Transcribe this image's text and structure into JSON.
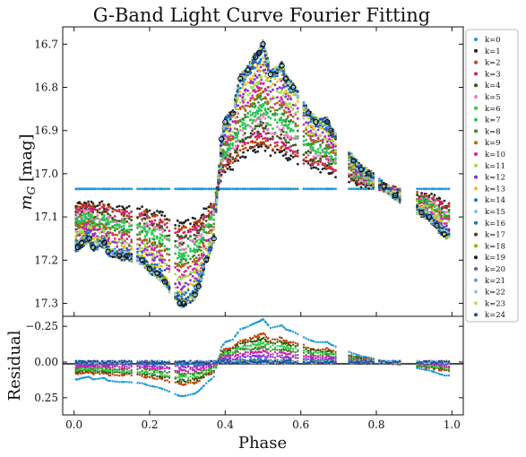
{
  "chart_data": {
    "type": "scatter",
    "title": "G-Band Light Curve Fourier Fitting",
    "xlabel": "Phase",
    "ylabel": "m_G [mag]",
    "ylabel_main": "m",
    "ylabel_sub": "G",
    "ylabel_unit": "[mag]",
    "residual_ylabel": "Residual",
    "xlim": [
      -0.03,
      1.03
    ],
    "ylim": [
      17.33,
      16.66
    ],
    "ylim_inverted": true,
    "residual_ylim": [
      0.37,
      -0.32
    ],
    "x_ticks": [
      "0.0",
      "0.2",
      "0.4",
      "0.6",
      "0.8",
      "1.0"
    ],
    "y_ticks": [
      "16.7",
      "16.8",
      "16.9",
      "17.0",
      "17.1",
      "17.2",
      "17.3"
    ],
    "residual_ticks": [
      "−0.25",
      "0.00",
      "0.25"
    ],
    "legend_position": "right, outside",
    "series_colors": [
      "#1f9ad6",
      "#222222",
      "#c2410c",
      "#c8207a",
      "#2f5c10",
      "#e583c6",
      "#2ecc40",
      "#22c55e",
      "#3f8a32",
      "#b26a12",
      "#d61fb0",
      "#9fe04a",
      "#8d2fd0",
      "#f0c020",
      "#0f7ad0",
      "#7ec8ea",
      "#2b6cb0",
      "#5a3d1a",
      "#7ab800",
      "#1c1c1c",
      "#7a4fa0",
      "#57a0d3",
      "#92c5e8",
      "#b8e060",
      "#1a4fa0"
    ],
    "legend": [
      "k=0",
      "k=1",
      "k=2",
      "k=3",
      "k=4",
      "k=5",
      "k=6",
      "k=7",
      "k=8",
      "k=9",
      "k=10",
      "k=11",
      "k=12",
      "k=13",
      "k=14",
      "k=15",
      "k=16",
      "k=17",
      "k=18",
      "k=19",
      "k=20",
      "k=21",
      "k=22",
      "k=23",
      "k=24"
    ],
    "observed": [
      {
        "x": 0.01,
        "y": 17.17
      },
      {
        "x": 0.02,
        "y": 17.16
      },
      {
        "x": 0.04,
        "y": 17.15
      },
      {
        "x": 0.05,
        "y": 17.17
      },
      {
        "x": 0.08,
        "y": 17.16
      },
      {
        "x": 0.09,
        "y": 17.18
      },
      {
        "x": 0.12,
        "y": 17.19
      },
      {
        "x": 0.14,
        "y": 17.19
      },
      {
        "x": 0.18,
        "y": 17.2
      },
      {
        "x": 0.2,
        "y": 17.22
      },
      {
        "x": 0.22,
        "y": 17.23
      },
      {
        "x": 0.24,
        "y": 17.25
      },
      {
        "x": 0.28,
        "y": 17.3
      },
      {
        "x": 0.29,
        "y": 17.3
      },
      {
        "x": 0.32,
        "y": 17.28
      },
      {
        "x": 0.33,
        "y": 17.26
      },
      {
        "x": 0.35,
        "y": 17.2
      },
      {
        "x": 0.37,
        "y": 17.15
      },
      {
        "x": 0.39,
        "y": 16.92
      },
      {
        "x": 0.4,
        "y": 16.88
      },
      {
        "x": 0.42,
        "y": 16.86
      },
      {
        "x": 0.44,
        "y": 16.78
      },
      {
        "x": 0.46,
        "y": 16.76
      },
      {
        "x": 0.48,
        "y": 16.73
      },
      {
        "x": 0.49,
        "y": 16.72
      },
      {
        "x": 0.5,
        "y": 16.7
      },
      {
        "x": 0.52,
        "y": 16.77
      },
      {
        "x": 0.55,
        "y": 16.75
      },
      {
        "x": 0.56,
        "y": 16.78
      },
      {
        "x": 0.58,
        "y": 16.8
      },
      {
        "x": 0.62,
        "y": 16.86
      },
      {
        "x": 0.64,
        "y": 16.88
      },
      {
        "x": 0.67,
        "y": 16.88
      },
      {
        "x": 0.68,
        "y": 16.9
      },
      {
        "x": 0.74,
        "y": 16.97
      },
      {
        "x": 0.76,
        "y": 16.99
      },
      {
        "x": 0.78,
        "y": 17.0
      },
      {
        "x": 0.82,
        "y": 17.03
      },
      {
        "x": 0.85,
        "y": 17.05
      },
      {
        "x": 0.92,
        "y": 17.09
      },
      {
        "x": 0.94,
        "y": 17.1
      },
      {
        "x": 0.96,
        "y": 17.12
      },
      {
        "x": 0.98,
        "y": 17.14
      }
    ]
  }
}
